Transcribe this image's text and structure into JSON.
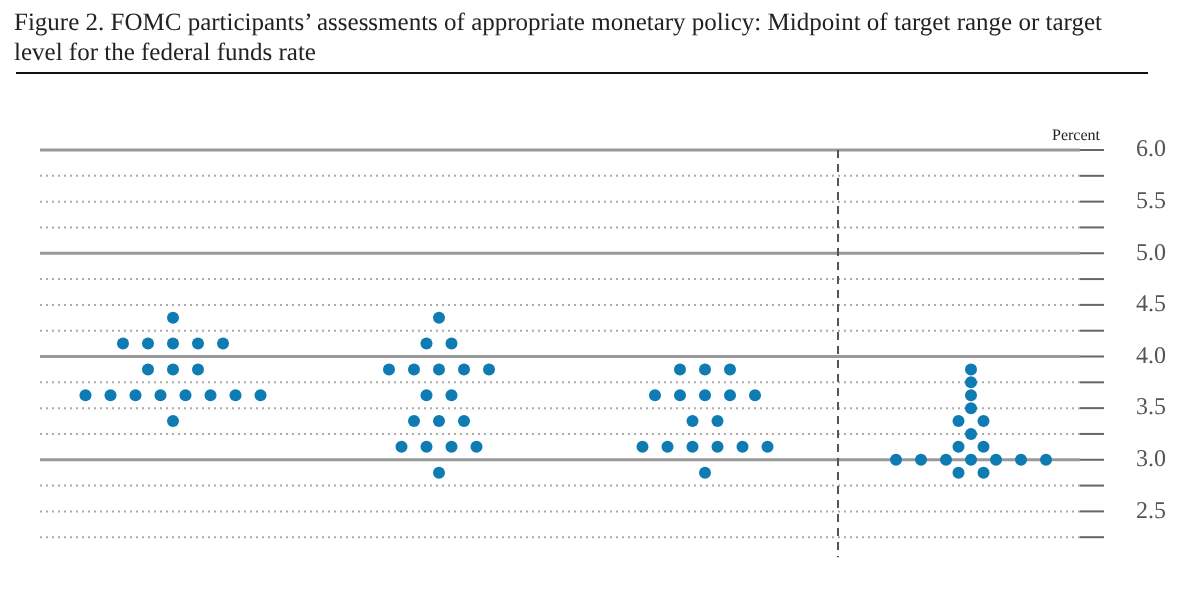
{
  "chart_data": {
    "type": "scatter",
    "title": "Figure 2. FOMC participants’ assessments of appropriate monetary policy: Midpoint of target range or target level for the federal funds rate",
    "ylabel": "Percent",
    "categories": [
      null,
      null,
      null,
      null
    ],
    "series": [
      {
        "color": "#0f7bb3",
        "values": [
          4.375,
          4.375,
          3.875,
          3.875
        ]
      },
      {
        "color": "#0f7bb3",
        "values": [
          4.125,
          4.125,
          3.875,
          3.75
        ]
      },
      {
        "color": "#0f7bb3",
        "values": [
          4.125,
          4.125,
          3.875,
          3.625
        ]
      },
      {
        "color": "#0f7bb3",
        "values": [
          4.125,
          3.875,
          3.625,
          3.5
        ]
      },
      {
        "color": "#0f7bb3",
        "values": [
          4.125,
          3.875,
          3.625,
          3.375
        ]
      },
      {
        "color": "#0f7bb3",
        "values": [
          4.125,
          3.875,
          3.625,
          3.375
        ]
      },
      {
        "color": "#0f7bb3",
        "values": [
          3.875,
          3.875,
          3.625,
          3.25
        ]
      },
      {
        "color": "#0f7bb3",
        "values": [
          3.875,
          3.875,
          3.625,
          3.125
        ]
      },
      {
        "color": "#0f7bb3",
        "values": [
          3.875,
          3.625,
          3.375,
          3.125
        ]
      },
      {
        "color": "#0f7bb3",
        "values": [
          3.625,
          3.625,
          3.375,
          3.0
        ]
      },
      {
        "color": "#0f7bb3",
        "values": [
          3.625,
          3.375,
          3.125,
          3.0
        ]
      },
      {
        "color": "#0f7bb3",
        "values": [
          3.625,
          3.375,
          3.125,
          3.0
        ]
      },
      {
        "color": "#0f7bb3",
        "values": [
          3.625,
          3.375,
          3.125,
          3.0
        ]
      },
      {
        "color": "#0f7bb3",
        "values": [
          3.625,
          3.125,
          3.125,
          3.0
        ]
      },
      {
        "color": "#0f7bb3",
        "values": [
          3.625,
          3.125,
          3.125,
          3.0
        ]
      },
      {
        "color": "#0f7bb3",
        "values": [
          3.625,
          3.125,
          3.125,
          3.0
        ]
      },
      {
        "color": "#0f7bb3",
        "values": [
          3.625,
          3.125,
          2.875,
          2.875
        ]
      },
      {
        "color": "#0f7bb3",
        "values": [
          3.375,
          2.875,
          null,
          2.875
        ]
      }
    ],
    "ylim": [
      2.25,
      6.0
    ],
    "yticks": [
      {
        "value": 2.25,
        "label": null
      },
      2.5,
      {
        "value": 2.75,
        "label": null
      },
      {
        "value": 3,
        "label": "3.0"
      },
      {
        "value": 3.25,
        "label": null
      },
      3.5,
      {
        "value": 3.75,
        "label": null
      },
      {
        "value": 4,
        "label": "4.0"
      },
      {
        "value": 4.25,
        "label": null
      },
      4.5,
      {
        "value": 4.75,
        "label": null
      },
      {
        "value": 5,
        "label": "5.0"
      },
      {
        "value": 5.25,
        "label": null
      },
      5.5,
      {
        "value": 5.75,
        "label": null
      },
      {
        "value": 6,
        "label": "6.0"
      }
    ],
    "grid": "y",
    "legend": false,
    "marker": "circle"
  }
}
